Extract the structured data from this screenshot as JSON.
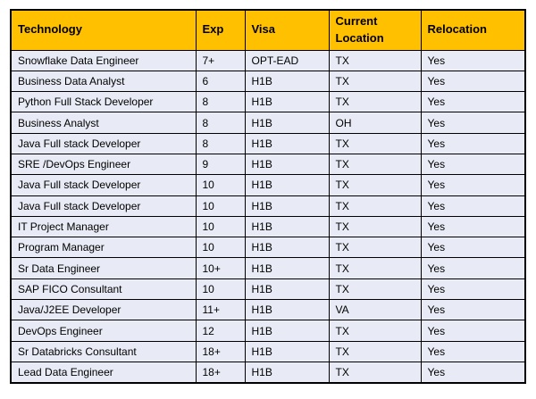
{
  "table": {
    "columns": [
      {
        "key": "technology",
        "label": "Technology"
      },
      {
        "key": "exp",
        "label": "Exp"
      },
      {
        "key": "visa",
        "label": "Visa"
      },
      {
        "key": "location",
        "label": "Current Location"
      },
      {
        "key": "relocation",
        "label": "Relocation"
      }
    ],
    "rows": [
      [
        "Snowflake Data Engineer",
        "7+",
        "OPT-EAD",
        "TX",
        "Yes"
      ],
      [
        "Business Data Analyst",
        "6",
        "H1B",
        "TX",
        "Yes"
      ],
      [
        "Python Full Stack Developer",
        "8",
        "H1B",
        "TX",
        "Yes"
      ],
      [
        "Business Analyst",
        "8",
        "H1B",
        "OH",
        "Yes"
      ],
      [
        "Java Full stack Developer",
        "8",
        "H1B",
        "TX",
        "Yes"
      ],
      [
        "SRE /DevOps Engineer",
        "9",
        "H1B",
        "TX",
        "Yes"
      ],
      [
        "Java Full stack Developer",
        "10",
        "H1B",
        "TX",
        "Yes"
      ],
      [
        "Java Full stack Developer",
        "10",
        "H1B",
        "TX",
        "Yes"
      ],
      [
        "IT Project Manager",
        "10",
        "H1B",
        "TX",
        "Yes"
      ],
      [
        "Program Manager",
        "10",
        "H1B",
        "TX",
        "Yes"
      ],
      [
        "Sr Data Engineer",
        "10+",
        "H1B",
        "TX",
        "Yes"
      ],
      [
        "SAP FICO Consultant",
        "10",
        "H1B",
        "TX",
        "Yes"
      ],
      [
        "Java/J2EE Developer",
        "11+",
        "H1B",
        "VA",
        "Yes"
      ],
      [
        "DevOps Engineer",
        "12",
        "H1B",
        "TX",
        "Yes"
      ],
      [
        "Sr Databricks Consultant",
        "18+",
        "H1B",
        "TX",
        "Yes"
      ],
      [
        "Lead Data Engineer",
        "18+",
        "H1B",
        "TX",
        "Yes"
      ]
    ],
    "colors": {
      "header_bg": "#FFC000",
      "header_text": "#000000",
      "row_bg": "#E8EBF5",
      "border": "#000000",
      "page_bg": "#FFFFFF"
    }
  }
}
